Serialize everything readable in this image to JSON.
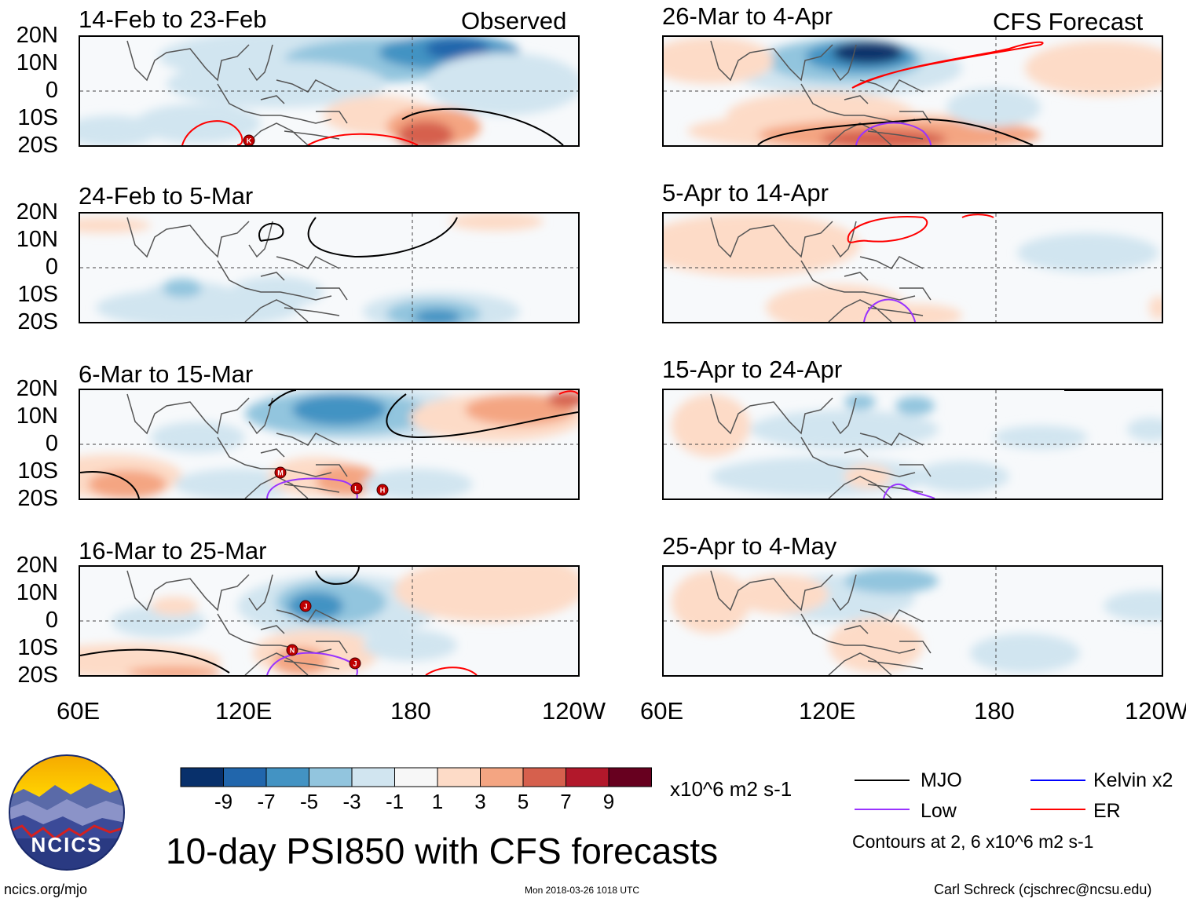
{
  "figure": {
    "main_title": "10-day PSI850 with CFS forecasts",
    "section_observed": "Observed",
    "section_forecast": "CFS Forecast",
    "website": "ncics.org/mjo",
    "timestamp": "Mon 2018-03-26 1018 UTC",
    "author": "Carl Schreck (cjschrec@ncsu.edu)",
    "logo_text": "NCICS"
  },
  "panels": [
    {
      "title": "14-Feb to 23-Feb",
      "column": "observed"
    },
    {
      "title": "24-Feb to 5-Mar",
      "column": "observed"
    },
    {
      "title": "6-Mar to 15-Mar",
      "column": "observed"
    },
    {
      "title": "16-Mar to 25-Mar",
      "column": "observed"
    },
    {
      "title": "26-Mar to 4-Apr",
      "column": "forecast"
    },
    {
      "title": "5-Apr to 14-Apr",
      "column": "forecast"
    },
    {
      "title": "15-Apr to 24-Apr",
      "column": "forecast"
    },
    {
      "title": "25-Apr to 4-May",
      "column": "forecast"
    }
  ],
  "latitude_labels": [
    "20N",
    "10N",
    "0",
    "10S",
    "20S"
  ],
  "longitude_labels": [
    "60E",
    "120E",
    "180",
    "120W"
  ],
  "colorbar": {
    "ticks": [
      "-9",
      "-7",
      "-5",
      "-3",
      "-1",
      "1",
      "3",
      "5",
      "7",
      "9"
    ],
    "units": "x10^6 m2 s-1",
    "colors": [
      "#08306b",
      "#2166ac",
      "#4393c3",
      "#92c5de",
      "#d1e5f0",
      "#f7f7f7",
      "#fddbc7",
      "#f4a582",
      "#d6604d",
      "#b2182b",
      "#67001f"
    ]
  },
  "legend": {
    "items": [
      {
        "label": "MJO",
        "color": "#000000"
      },
      {
        "label": "Low",
        "color": "#9933ff"
      },
      {
        "label": "Kelvin x2",
        "color": "#0000ff"
      },
      {
        "label": "ER",
        "color": "#ff0000"
      }
    ],
    "contour_note": "Contours at 2, 6 x10^6 m2 s-1"
  },
  "storm_markers": [
    {
      "label": "K",
      "panel": 0
    },
    {
      "label": "M",
      "panel": 2
    },
    {
      "label": "L",
      "panel": 2
    },
    {
      "label": "H",
      "panel": 2
    },
    {
      "label": "J",
      "panel": 3
    },
    {
      "label": "N",
      "panel": 3
    },
    {
      "label": "J",
      "panel": 3
    }
  ]
}
